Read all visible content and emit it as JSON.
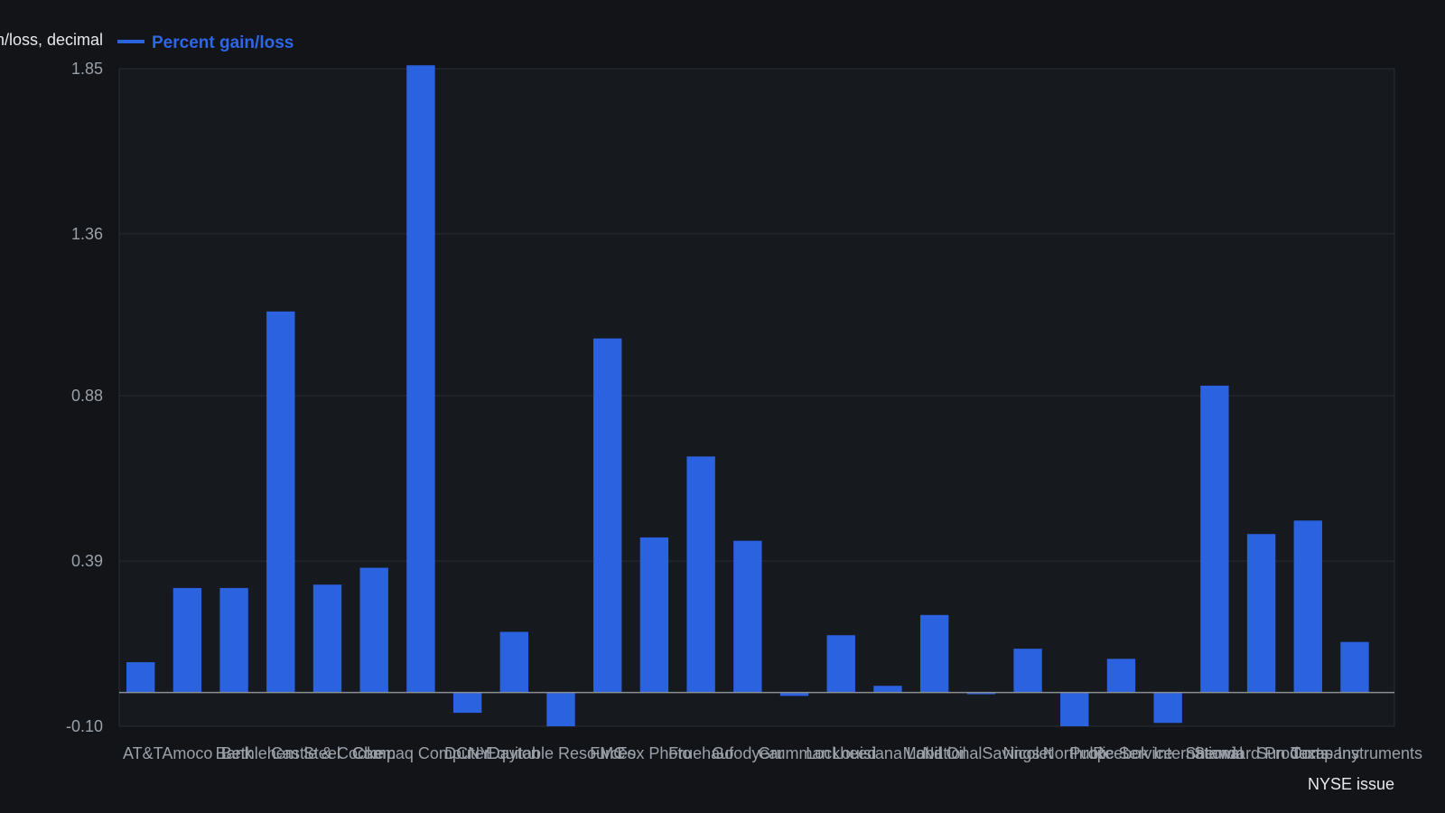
{
  "chart_data": {
    "type": "bar",
    "title": "",
    "xlabel": "NYSE issue",
    "ylabel": "Percent gain/loss, decimal",
    "ylim": [
      -0.1,
      1.85
    ],
    "yticks": [
      "1.85",
      "1.36",
      "0.88",
      "0.39",
      "-0.10"
    ],
    "grid": true,
    "legend_position": "top-left",
    "colors": {
      "bar": "#2a62e0",
      "background": "#121418",
      "plot_background": "#16191e",
      "grid": "#2a2e35",
      "zero_line": "#8a8f96"
    },
    "categories": [
      "AT&T",
      "Amoco",
      "Bank",
      "Bethlehem Steel",
      "Castle & Cooke",
      "Chem",
      "Compaq Computer",
      "DCNY",
      "Dayton",
      "Equitable Resources",
      "FMC",
      "Fox Photo",
      "Fruehauf",
      "Goodyear",
      "Grumman",
      "Lockheed",
      "Louisiana Land",
      "Mobil Oil",
      "NationalSavings",
      "Nicolet",
      "Northrop",
      "Public Service",
      "Reebok International",
      "Sherwin",
      "Standard Products",
      "Sun Company",
      "Texas Instruments"
    ],
    "series": [
      {
        "name": "Percent gain/loss",
        "values": [
          0.09,
          0.31,
          0.31,
          1.13,
          0.32,
          0.37,
          1.86,
          -0.06,
          0.18,
          -0.1,
          1.05,
          0.46,
          0.7,
          0.45,
          -0.01,
          0.17,
          0.02,
          0.23,
          -0.005,
          0.13,
          -0.1,
          0.1,
          -0.09,
          0.91,
          0.47,
          0.51,
          0.15
        ]
      }
    ]
  }
}
